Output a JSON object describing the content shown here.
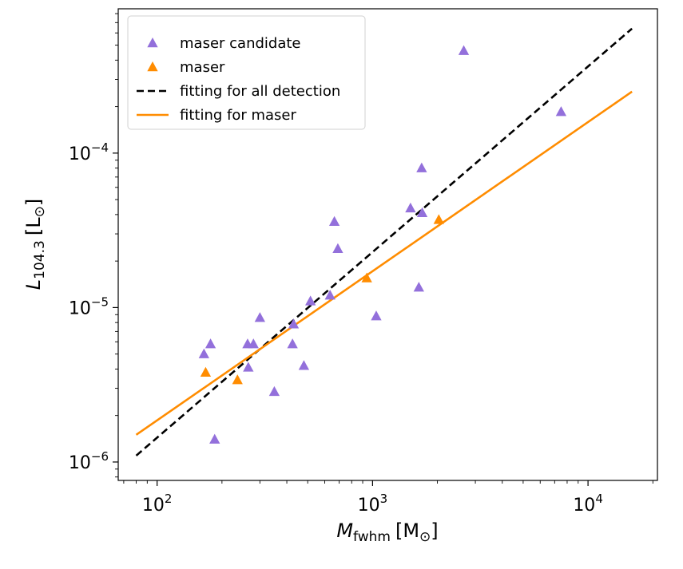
{
  "chart_data": {
    "type": "scatter",
    "x_scale": "log",
    "y_scale": "log",
    "xlim": [
      66,
      21000
    ],
    "ylim": [
      7.6e-07,
      0.00086
    ],
    "x_ticks": [
      {
        "value": 100,
        "base": "10",
        "exp": "2"
      },
      {
        "value": 1000,
        "base": "10",
        "exp": "3"
      },
      {
        "value": 10000,
        "base": "10",
        "exp": "4"
      }
    ],
    "y_ticks": [
      {
        "value": 1e-06,
        "base": "10",
        "exp": "−6"
      },
      {
        "value": 1e-05,
        "base": "10",
        "exp": "−5"
      },
      {
        "value": 0.0001,
        "base": "10",
        "exp": "−4"
      }
    ],
    "xlabel": {
      "main": "M",
      "sub": "fwhm",
      "unit": "[M",
      "unit_sub": "⊙",
      "unit_close": "]"
    },
    "ylabel": {
      "main": "L",
      "sub": "104.3",
      "unit": "[L",
      "unit_sub": "⊙",
      "unit_close": "]"
    },
    "colors": {
      "maser_candidate": "#9370DB",
      "maser": "#FF8C00",
      "fit_all": "#000000",
      "fit_maser": "#FF8C00"
    },
    "legend": {
      "placement": "upper-left",
      "entries": [
        {
          "key": "maser_candidate",
          "label": "maser candidate",
          "marker": "triangle"
        },
        {
          "key": "maser",
          "label": "maser",
          "marker": "triangle"
        },
        {
          "key": "fit_all",
          "label": "fitting for all detection",
          "marker": "dashed-line"
        },
        {
          "key": "fit_maser",
          "label": "fitting for maser",
          "marker": "solid-line"
        }
      ]
    },
    "series": [
      {
        "name": "maser candidate",
        "key": "maser_candidate",
        "points": [
          {
            "x": 165,
            "y": 5e-06
          },
          {
            "x": 177,
            "y": 5.8e-06
          },
          {
            "x": 185,
            "y": 1.4e-06
          },
          {
            "x": 263,
            "y": 5.8e-06
          },
          {
            "x": 265,
            "y": 4.1e-06
          },
          {
            "x": 280,
            "y": 5.8e-06
          },
          {
            "x": 300,
            "y": 8.6e-06
          },
          {
            "x": 350,
            "y": 2.85e-06
          },
          {
            "x": 425,
            "y": 5.8e-06
          },
          {
            "x": 430,
            "y": 7.8e-06
          },
          {
            "x": 480,
            "y": 4.2e-06
          },
          {
            "x": 515,
            "y": 1.1e-05
          },
          {
            "x": 635,
            "y": 1.2e-05
          },
          {
            "x": 665,
            "y": 3.6e-05
          },
          {
            "x": 690,
            "y": 2.4e-05
          },
          {
            "x": 1040,
            "y": 8.8e-06
          },
          {
            "x": 1500,
            "y": 4.4e-05
          },
          {
            "x": 1640,
            "y": 1.35e-05
          },
          {
            "x": 1690,
            "y": 8e-05
          },
          {
            "x": 1700,
            "y": 4.1e-05
          },
          {
            "x": 2650,
            "y": 0.00046
          },
          {
            "x": 7500,
            "y": 0.000185
          }
        ]
      },
      {
        "name": "maser",
        "key": "maser",
        "points": [
          {
            "x": 168,
            "y": 3.8e-06
          },
          {
            "x": 236,
            "y": 3.4e-06
          },
          {
            "x": 940,
            "y": 1.55e-05
          },
          {
            "x": 2030,
            "y": 3.7e-05
          }
        ]
      }
    ],
    "fits": [
      {
        "name": "fitting for all detection",
        "key": "fit_all",
        "style": "dashed",
        "x": [
          80,
          16000
        ],
        "y": [
          1.1e-06,
          0.00064
        ]
      },
      {
        "name": "fitting for maser",
        "key": "fit_maser",
        "style": "solid",
        "x": [
          80,
          16000
        ],
        "y": [
          1.5e-06,
          0.00025
        ]
      }
    ]
  }
}
